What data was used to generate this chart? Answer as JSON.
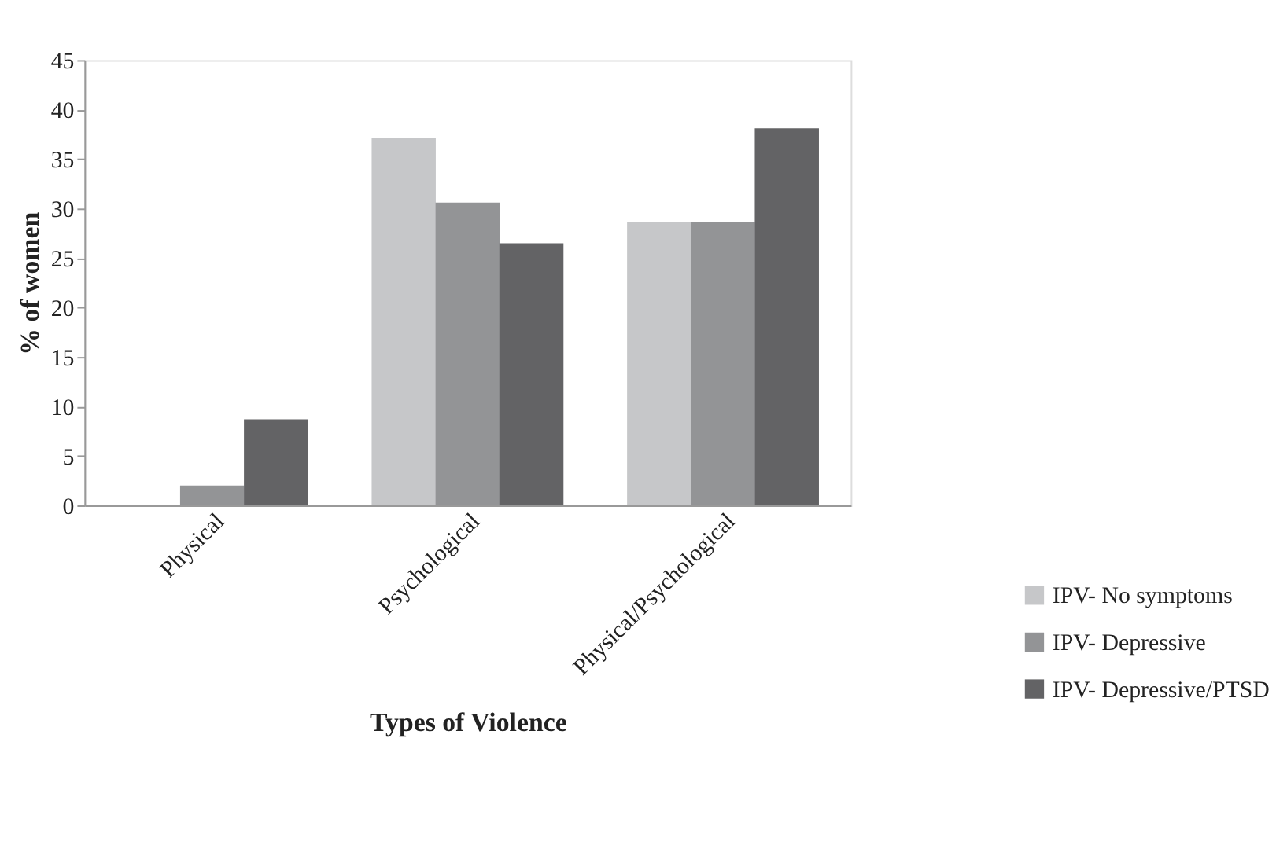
{
  "chart_data": {
    "type": "bar",
    "xlabel": "Types of Violence",
    "ylabel": "% of  women",
    "categories": [
      "Physical",
      "Psychological",
      "Physical/Psychological"
    ],
    "series": [
      {
        "name": "IPV- No symptoms",
        "color": "#c6c7c9",
        "values": [
          0,
          37.1,
          28.6
        ]
      },
      {
        "name": "IPV- Depressive",
        "color": "#939496",
        "values": [
          2.0,
          30.6,
          28.6
        ]
      },
      {
        "name": "IPV- Depressive/PTSD",
        "color": "#636365",
        "values": [
          8.7,
          26.5,
          38.1
        ]
      }
    ],
    "ylim": [
      0,
      45
    ],
    "yticks": [
      0,
      5,
      10,
      15,
      20,
      25,
      30,
      35,
      40,
      45
    ],
    "grid": false,
    "legend": "bottom right"
  }
}
